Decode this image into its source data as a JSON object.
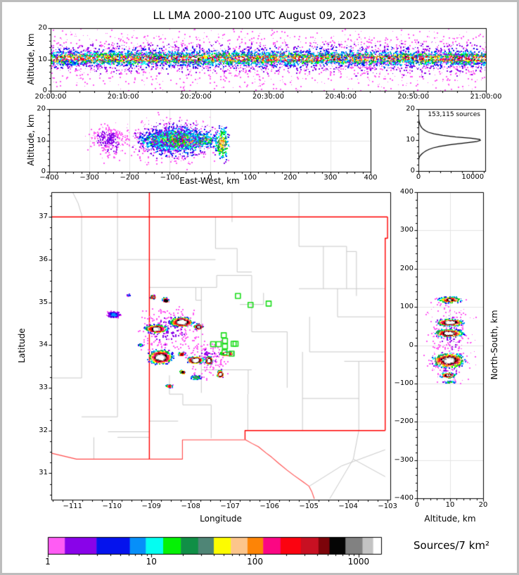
{
  "title": "LL LMA 2000-2100 UTC August 09, 2023",
  "palette": [
    "#ff5cf4",
    "#8903e9",
    "#0513ed",
    "#068ff9",
    "#04fdf1",
    "#05f105",
    "#108f46",
    "#4f8576",
    "#fdfc00",
    "#fcc58b",
    "#fd8406",
    "#fb0783",
    "#fb0310",
    "#c81022",
    "#7c040a",
    "#050505",
    "#818181",
    "#c3c3c3",
    "#ffffff"
  ],
  "chart_data": [
    {
      "id": "time_height",
      "type": "scatter",
      "ylabel": "Altitude, km",
      "x_range": [
        0,
        3600
      ],
      "y_range": [
        0,
        20
      ],
      "x_ticks": [
        [
          0,
          "20:00:00"
        ],
        [
          600,
          "20:10:00"
        ],
        [
          1200,
          "20:20:00"
        ],
        [
          1800,
          "20:30:00"
        ],
        [
          2400,
          "20:40:00"
        ],
        [
          3000,
          "20:50:00"
        ],
        [
          3600,
          "21:00:00"
        ]
      ],
      "x_minor_step": 120,
      "y_ticks": [
        0,
        10,
        20
      ],
      "y_minor_step": 2,
      "bands": [
        [
          1800,
          10.3,
          1805,
          1.25,
          5200,
          1.0,
          1
        ],
        [
          1800,
          10.3,
          1805,
          2.7,
          2600,
          0.6,
          1
        ],
        [
          1800,
          10.5,
          1805,
          5.5,
          1500,
          0.25,
          1
        ],
        [
          1800,
          10.0,
          1805,
          9.6,
          1000,
          0.1,
          1
        ]
      ]
    },
    {
      "id": "east_west_altitude",
      "type": "scatter",
      "xlabel": "East-West, km",
      "ylabel": "Altitude, km",
      "x_range": [
        -400,
        400
      ],
      "y_range": [
        0,
        20
      ],
      "x_ticks": [
        -400,
        -300,
        -200,
        -100,
        0,
        100,
        200,
        300,
        400
      ],
      "x_minor_step": 20,
      "y_ticks": [
        0,
        10,
        20
      ],
      "y_minor_step": 2,
      "grid_x_step": 100,
      "grid_y": [
        10
      ],
      "blobs": [
        [
          -80,
          10,
          115,
          2.2,
          1600,
          1.0,
          0
        ],
        [
          -80,
          10,
          125,
          4.5,
          950,
          0.6,
          0
        ],
        [
          -85,
          10,
          135,
          8,
          700,
          0.3,
          0
        ],
        [
          -90,
          10,
          150,
          9.7,
          420,
          0.1,
          0
        ],
        [
          -255,
          10.5,
          62,
          5,
          210,
          0.1,
          0
        ],
        [
          -245,
          9,
          48,
          8,
          120,
          0.08,
          0
        ],
        [
          30,
          9,
          26,
          7.5,
          230,
          0.5,
          0
        ]
      ]
    },
    {
      "id": "altitude_histogram",
      "type": "line",
      "annotation": "153,115 sources",
      "x_range": [
        0,
        12300
      ],
      "y_range": [
        0,
        20
      ],
      "x_ticks": [
        0,
        10000
      ],
      "x_minor_step": 2000,
      "y_ticks": [
        0,
        10,
        20
      ],
      "y_minor_step": 2,
      "curve_alt_count": [
        [
          0,
          0
        ],
        [
          2,
          10
        ],
        [
          3,
          30
        ],
        [
          4,
          80
        ],
        [
          4.5,
          160
        ],
        [
          5,
          350
        ],
        [
          5.5,
          620
        ],
        [
          6,
          950
        ],
        [
          6.5,
          1350
        ],
        [
          7,
          1950
        ],
        [
          7.5,
          2750
        ],
        [
          8,
          4000
        ],
        [
          8.5,
          5800
        ],
        [
          9,
          8300
        ],
        [
          9.5,
          10700
        ],
        [
          9.9,
          11400
        ],
        [
          10.2,
          11300
        ],
        [
          10.6,
          9700
        ],
        [
          11,
          6900
        ],
        [
          11.5,
          4500
        ],
        [
          12,
          2850
        ],
        [
          12.5,
          1850
        ],
        [
          13,
          1280
        ],
        [
          13.5,
          880
        ],
        [
          14,
          610
        ],
        [
          14.5,
          420
        ],
        [
          15,
          290
        ],
        [
          15.5,
          195
        ],
        [
          16,
          125
        ],
        [
          16.5,
          75
        ],
        [
          17,
          42
        ],
        [
          17.5,
          25
        ],
        [
          18,
          13
        ],
        [
          19,
          4
        ],
        [
          20,
          0
        ]
      ]
    },
    {
      "id": "plan_view",
      "type": "scatter-map",
      "xlabel": "Longitude",
      "ylabel": "Latitude",
      "lon_range": [
        -111.54,
        -102.93
      ],
      "lat_range": [
        30.38,
        37.58
      ],
      "lon_ticks": [
        -111,
        -110,
        -109,
        -108,
        -107,
        -106,
        -105,
        -104,
        -103
      ],
      "lat_ticks": [
        31,
        32,
        33,
        34,
        35,
        36,
        37
      ],
      "minor_step": 0.25,
      "state_borders": [
        [
          [
            -109.05,
            37.58
          ],
          [
            -109.05,
            31.33
          ]
        ],
        [
          [
            -111.54,
            37.0
          ],
          [
            -103.0,
            37.0
          ]
        ],
        [
          [
            -103.0,
            37.0
          ],
          [
            -103.0,
            36.5
          ],
          [
            -103.06,
            36.5
          ],
          [
            -103.06,
            32.0
          ]
        ],
        [
          [
            -103.06,
            32.0
          ],
          [
            -106.62,
            32.0
          ],
          [
            -106.62,
            31.79
          ]
        ]
      ],
      "international_borders": [
        [
          [
            -111.54,
            31.47
          ],
          [
            -110.9,
            31.33
          ],
          [
            -108.21,
            31.33
          ],
          [
            -108.21,
            31.78
          ],
          [
            -106.62,
            31.78
          ]
        ],
        [
          [
            -106.62,
            31.79
          ],
          [
            -106.45,
            31.7
          ],
          [
            -106.28,
            31.62
          ],
          [
            -106.08,
            31.47
          ],
          [
            -105.95,
            31.38
          ],
          [
            -105.75,
            31.22
          ],
          [
            -105.55,
            31.07
          ],
          [
            -105.38,
            30.95
          ],
          [
            -105.15,
            30.8
          ],
          [
            -105.0,
            30.7
          ],
          [
            -104.92,
            30.56
          ],
          [
            -104.86,
            30.4
          ]
        ]
      ],
      "county_lines": [
        [
          [
            -109.86,
            37.58
          ],
          [
            -109.86,
            32.32
          ]
        ],
        [
          [
            -110.77,
            36.95
          ],
          [
            -110.77,
            33.23
          ]
        ],
        [
          [
            -111.54,
            33.23
          ],
          [
            -110.77,
            33.23
          ]
        ],
        [
          [
            -110.77,
            32.32
          ],
          [
            -109.86,
            32.32
          ]
        ],
        [
          [
            -111.0,
            37.58
          ],
          [
            -110.86,
            37.32
          ],
          [
            -110.77,
            37.05
          ],
          [
            -110.77,
            36.95
          ]
        ],
        [
          [
            -110.1,
            31.97
          ],
          [
            -109.05,
            31.97
          ]
        ],
        [
          [
            -109.86,
            31.84
          ],
          [
            -109.05,
            31.84
          ]
        ],
        [
          [
            -110.46,
            31.84
          ],
          [
            -110.46,
            31.33
          ]
        ],
        [
          [
            -109.86,
            36.0
          ],
          [
            -107.37,
            36.0
          ]
        ],
        [
          [
            -109.05,
            35.35
          ],
          [
            -107.34,
            35.35
          ]
        ],
        [
          [
            -107.73,
            35.35
          ],
          [
            -107.73,
            32.88
          ]
        ],
        [
          [
            -107.34,
            35.35
          ],
          [
            -107.34,
            35.63
          ],
          [
            -106.45,
            35.63
          ]
        ],
        [
          [
            -106.45,
            35.63
          ],
          [
            -106.45,
            34.31
          ],
          [
            -105.55,
            34.31
          ],
          [
            -105.55,
            33.0
          ]
        ],
        [
          [
            -107.37,
            37.0
          ],
          [
            -107.37,
            36.26
          ],
          [
            -106.82,
            36.26
          ],
          [
            -106.82,
            35.71
          ],
          [
            -106.45,
            35.71
          ]
        ],
        [
          [
            -106.95,
            37.58
          ],
          [
            -106.95,
            36.88
          ]
        ],
        [
          [
            -105.25,
            37.58
          ],
          [
            -105.25,
            36.31
          ],
          [
            -104.04,
            36.31
          ],
          [
            -104.04,
            35.32
          ]
        ],
        [
          [
            -104.63,
            36.31
          ],
          [
            -104.63,
            35.32
          ]
        ],
        [
          [
            -104.04,
            36.19
          ],
          [
            -103.79,
            36.19
          ],
          [
            -103.79,
            35.15
          ]
        ],
        [
          [
            -105.25,
            35.32
          ],
          [
            -103.06,
            35.32
          ]
        ],
        [
          [
            -104.27,
            35.32
          ],
          [
            -104.27,
            34.66
          ],
          [
            -103.06,
            34.66
          ]
        ],
        [
          [
            -104.98,
            34.66
          ],
          [
            -104.98,
            33.84
          ],
          [
            -103.06,
            33.84
          ]
        ],
        [
          [
            -104.1,
            33.62
          ],
          [
            -103.06,
            33.62
          ]
        ],
        [
          [
            -103.73,
            33.62
          ],
          [
            -103.73,
            32.0
          ]
        ],
        [
          [
            -105.16,
            33.84
          ],
          [
            -105.16,
            32.0
          ]
        ],
        [
          [
            -105.16,
            32.75
          ],
          [
            -103.73,
            32.75
          ]
        ],
        [
          [
            -107.73,
            33.42
          ],
          [
            -106.45,
            33.42
          ]
        ],
        [
          [
            -106.54,
            33.42
          ],
          [
            -106.54,
            32.85
          ]
        ],
        [
          [
            -106.55,
            32.85
          ],
          [
            -106.55,
            32.0
          ]
        ],
        [
          [
            -108.54,
            33.29
          ],
          [
            -108.54,
            32.85
          ],
          [
            -108.2,
            32.85
          ],
          [
            -108.2,
            32.6
          ],
          [
            -107.48,
            32.6
          ],
          [
            -107.48,
            31.82
          ]
        ],
        [
          [
            -109.05,
            32.22
          ],
          [
            -108.32,
            32.22
          ]
        ],
        [
          [
            -104.98,
            30.7
          ],
          [
            -104.17,
            31.17
          ],
          [
            -103.06,
            31.55
          ]
        ],
        [
          [
            -103.73,
            32.0
          ],
          [
            -103.87,
            31.33
          ],
          [
            -104.47,
            30.4
          ]
        ],
        [
          [
            -103.87,
            31.33
          ],
          [
            -103.06,
            30.92
          ]
        ],
        [
          [
            -106.15,
            35.22
          ],
          [
            -106.15,
            34.95
          ],
          [
            -106.75,
            34.95
          ]
        ],
        [
          [
            -107.87,
            35.35
          ],
          [
            -107.87,
            35.05
          ],
          [
            -107.73,
            35.05
          ]
        ]
      ],
      "stations": [
        [
          -106.8,
          35.15
        ],
        [
          -106.48,
          34.94
        ],
        [
          -106.02,
          34.97
        ],
        [
          -107.16,
          34.23
        ],
        [
          -107.13,
          34.1
        ],
        [
          -107.43,
          34.02
        ],
        [
          -107.29,
          34.02
        ],
        [
          -106.91,
          34.03
        ],
        [
          -106.86,
          34.03
        ],
        [
          -107.13,
          33.97
        ],
        [
          -107.14,
          33.83
        ],
        [
          -106.96,
          33.8
        ]
      ],
      "blobs": [
        [
          -108.55,
          34.33,
          1.05,
          0.72,
          240,
          0.08,
          0
        ],
        [
          -107.6,
          33.7,
          0.75,
          0.55,
          140,
          0.07,
          0
        ],
        [
          -109.95,
          34.71,
          0.23,
          0.1,
          160,
          0.18,
          0
        ],
        [
          -109.57,
          35.17,
          0.06,
          0.04,
          15,
          0.15,
          0
        ],
        [
          -108.95,
          35.12,
          0.09,
          0.05,
          70,
          0.75,
          0
        ],
        [
          -108.64,
          35.05,
          0.11,
          0.07,
          90,
          0.8,
          0
        ],
        [
          -108.23,
          34.54,
          0.36,
          0.13,
          520,
          1.0,
          0
        ],
        [
          -107.8,
          34.43,
          0.14,
          0.08,
          130,
          0.85,
          0
        ],
        [
          -108.88,
          34.38,
          0.36,
          0.12,
          360,
          0.9,
          0
        ],
        [
          -109.27,
          34.0,
          0.07,
          0.035,
          30,
          0.3,
          0
        ],
        [
          -108.77,
          33.72,
          0.39,
          0.21,
          620,
          0.95,
          0
        ],
        [
          -108.23,
          33.79,
          0.11,
          0.05,
          70,
          0.7,
          0
        ],
        [
          -107.89,
          33.65,
          0.27,
          0.1,
          320,
          1.0,
          0
        ],
        [
          -107.54,
          33.64,
          0.12,
          0.12,
          160,
          0.9,
          0
        ],
        [
          -107.09,
          33.8,
          0.21,
          0.05,
          160,
          0.95,
          0
        ],
        [
          -107.25,
          33.32,
          0.1,
          0.12,
          130,
          0.85,
          0
        ],
        [
          -108.21,
          33.37,
          0.09,
          0.05,
          55,
          0.75,
          0
        ],
        [
          -107.87,
          33.24,
          0.18,
          0.07,
          90,
          0.4,
          0
        ],
        [
          -108.54,
          33.04,
          0.12,
          0.05,
          55,
          0.6,
          0
        ]
      ]
    },
    {
      "id": "north_south_altitude",
      "type": "scatter",
      "xlabel": "Altitude, km",
      "ylabel_right": "North-South, km",
      "x_range": [
        0,
        20
      ],
      "y_range": [
        -400,
        400
      ],
      "x_ticks": [
        0,
        10,
        20
      ],
      "x_minor_step": 2,
      "y_ticks": [
        -400,
        -300,
        -200,
        -100,
        0,
        100,
        200,
        300,
        400
      ],
      "y_minor_step": 20,
      "grid_y_step": 100,
      "grid_x": [
        10
      ],
      "blobs": [
        [
          10,
          30,
          9,
          115,
          260,
          0.07,
          0
        ],
        [
          10,
          -55,
          9,
          60,
          130,
          0.07,
          0
        ],
        [
          10,
          118,
          4.5,
          10,
          260,
          0.8,
          0
        ],
        [
          10,
          59,
          5,
          11,
          480,
          1.0,
          0
        ],
        [
          9.7,
          31,
          5.5,
          13,
          470,
          0.95,
          0
        ],
        [
          9.6,
          -40,
          6,
          24,
          750,
          1.0,
          0
        ],
        [
          9.5,
          -79,
          3.2,
          9,
          160,
          0.85,
          0
        ],
        [
          10,
          -97,
          2.6,
          4,
          45,
          0.35,
          0
        ]
      ]
    },
    {
      "id": "colorbar",
      "label": "Sources/7 km²",
      "scale": "log",
      "range": [
        1,
        1652
      ],
      "tick_values": [
        1,
        10,
        100,
        1000
      ],
      "minor_ticks": [
        2,
        3,
        4,
        5,
        6,
        7,
        8,
        9,
        20,
        30,
        40,
        50,
        60,
        70,
        80,
        90,
        200,
        300,
        400,
        500,
        600,
        700,
        800,
        900
      ],
      "segment_boundaries": [
        0,
        0.051,
        0.146,
        0.246,
        0.294,
        0.346,
        0.399,
        0.451,
        0.498,
        0.549,
        0.599,
        0.646,
        0.698,
        0.759,
        0.812,
        0.845,
        0.893,
        0.944,
        0.976,
        1.0
      ]
    }
  ]
}
